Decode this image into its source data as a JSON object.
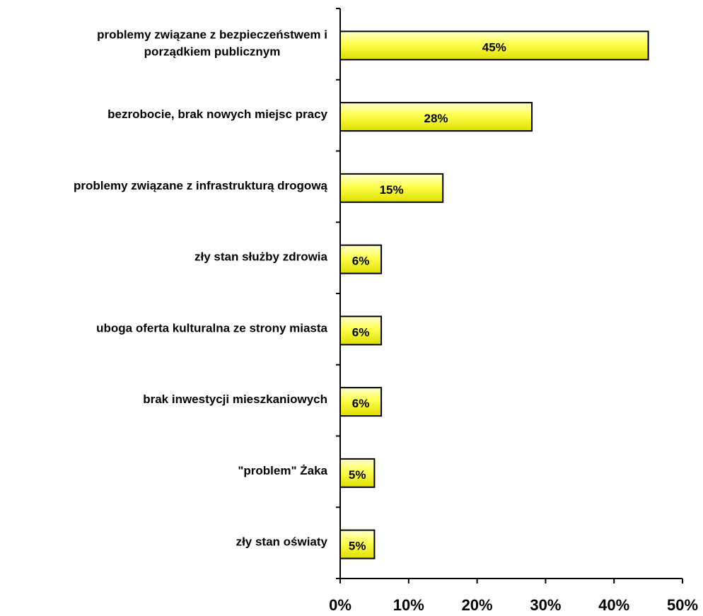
{
  "chart_data": {
    "type": "bar",
    "orientation": "horizontal",
    "title": "",
    "xlabel": "",
    "ylabel": "",
    "categories": [
      [
        "problemy związane z bezpieczeństwem i",
        "porządkiem publicznym"
      ],
      [
        "bezrobocie, brak nowych miejsc pracy"
      ],
      [
        "problemy związane z infrastrukturą drogową"
      ],
      [
        "zły stan służby zdrowia"
      ],
      [
        "uboga oferta kulturalna ze strony miasta"
      ],
      [
        "brak inwestycji mieszkaniowych"
      ],
      [
        "\"problem\" Żaka"
      ],
      [
        "zły stan oświaty"
      ]
    ],
    "values": [
      45,
      28,
      15,
      6,
      6,
      6,
      5,
      5
    ],
    "data_labels": [
      "45%",
      "28%",
      "15%",
      "6%",
      "6%",
      "6%",
      "5%",
      "5%"
    ],
    "xlim": [
      0,
      50
    ],
    "xticks": [
      0,
      10,
      20,
      30,
      40,
      50
    ],
    "xtick_labels": [
      "0%",
      "10%",
      "20%",
      "30%",
      "40%",
      "50%"
    ],
    "grid": false,
    "legend": "none",
    "colors": {
      "bar_fill_top": "#ffffd0",
      "bar_fill_mid": "#ffff4d",
      "bar_fill_bottom": "#dede00",
      "bar_stroke": "#000000",
      "axis": "#000000"
    }
  }
}
